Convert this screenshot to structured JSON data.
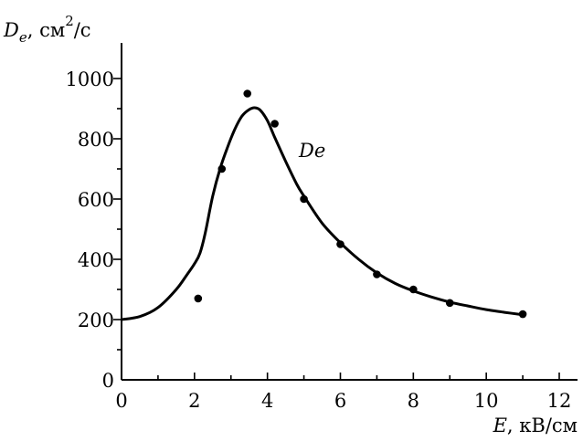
{
  "chart_data": {
    "type": "scatter",
    "xlabel": {
      "var": "E",
      "unit": ", кВ/см"
    },
    "ylabel": {
      "var": "D",
      "sub": "e",
      "unit1": ", см",
      "sup": "2",
      "unit2": "/с"
    },
    "xlim": [
      0,
      12.5
    ],
    "ylim": [
      0,
      1100
    ],
    "x_ticks": [
      0,
      2,
      4,
      6,
      8,
      10,
      12
    ],
    "x_minor_ticks": [
      1,
      3,
      5,
      7,
      9,
      11
    ],
    "y_ticks": [
      0,
      200,
      400,
      600,
      800,
      1000
    ],
    "y_minor_ticks": [
      100,
      300,
      500,
      700,
      900
    ],
    "grid": false,
    "series": [
      {
        "kind": "points",
        "x": [
          2.1,
          2.75,
          3.45,
          4.2,
          5.0,
          6.0,
          7.0,
          8.0,
          9.0,
          11.0
        ],
        "y": [
          270,
          700,
          950,
          850,
          600,
          450,
          350,
          300,
          255,
          218
        ]
      },
      {
        "name": "De",
        "kind": "curve",
        "x": [
          0,
          0.5,
          1.0,
          1.5,
          1.8,
          2.0,
          2.15,
          2.3,
          2.5,
          2.7,
          2.9,
          3.1,
          3.3,
          3.5,
          3.65,
          3.8,
          4.0,
          4.2,
          4.5,
          4.8,
          5.0,
          5.5,
          6.0,
          6.5,
          7.0,
          7.5,
          8.0,
          8.5,
          9.0,
          9.5,
          10.0,
          10.5,
          11.0
        ],
        "y": [
          200,
          210,
          240,
          300,
          350,
          385,
          420,
          490,
          610,
          700,
          770,
          830,
          875,
          897,
          903,
          895,
          860,
          805,
          725,
          650,
          610,
          520,
          455,
          400,
          355,
          320,
          295,
          275,
          258,
          245,
          233,
          224,
          216
        ]
      }
    ],
    "annotations": [
      {
        "text": "De",
        "x": 4.9,
        "y": 760
      }
    ]
  }
}
